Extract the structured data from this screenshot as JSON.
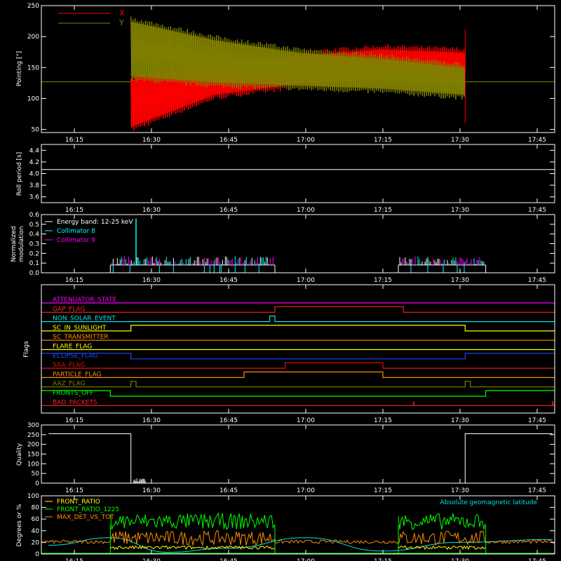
{
  "colors": {
    "background": "#000000",
    "axes": "#ffffff",
    "x_pointing": "#ff0000",
    "y_pointing": "#808000",
    "energy_label": "#ffffff",
    "collimator8": "#00ffff",
    "collimator9": "#ff00ff",
    "geomag": "#00e5e5",
    "front_ratio": "#ffff00",
    "front_ratio_1225": "#00ff00",
    "max_det": "#ff8c00"
  },
  "time_axis": {
    "start_min": 1000,
    "end_min": 1070,
    "ticks": [
      "16:15",
      "16:30",
      "16:45",
      "17:00",
      "17:15",
      "17:30",
      "17:45"
    ],
    "tick_minutes": [
      975,
      990,
      1005,
      1020,
      1035,
      1050,
      1065
    ]
  },
  "chart_data": [
    {
      "type": "line",
      "ylabel": "Pointing [\"]",
      "ylim": [
        45,
        250
      ],
      "yticks": [
        "50",
        "100",
        "150",
        "200",
        "250"
      ],
      "ytick_values": [
        50,
        100,
        150,
        200,
        250
      ],
      "legend": [
        {
          "name": "X",
          "color": "#ff0000"
        },
        {
          "name": "Y",
          "color": "#808000"
        }
      ],
      "series": [
        {
          "name": "X",
          "quiet_value": 127,
          "active_start": "16:26",
          "active_end": "17:31",
          "min_envelope": [
            48,
            100,
            118,
            125,
            130
          ],
          "max_envelope": [
            135,
            160,
            175,
            185,
            180
          ]
        },
        {
          "name": "Y",
          "quiet_value": 127,
          "active_start": "16:26",
          "active_end": "17:31",
          "min_envelope": [
            130,
            120,
            115,
            110,
            100
          ],
          "max_envelope": [
            230,
            200,
            180,
            170,
            155
          ]
        }
      ]
    },
    {
      "type": "line",
      "ylabel": "Roll period [s]",
      "ylim": [
        3.5,
        4.5
      ],
      "yticks": [
        "3.6",
        "3.8",
        "4.0",
        "4.2",
        "4.4"
      ],
      "ytick_values": [
        3.6,
        3.8,
        4.0,
        4.2,
        4.4
      ],
      "series": [
        {
          "name": "",
          "value": 4.07
        }
      ]
    },
    {
      "type": "bar",
      "ylabel": "Normalized modulation",
      "ylabel_lines": [
        "Normalized",
        "modulation"
      ],
      "ylim": [
        0,
        0.6
      ],
      "yticks": [
        "0.0",
        "0.1",
        "0.2",
        "0.3",
        "0.4",
        "0.5",
        "0.6"
      ],
      "ytick_values": [
        0,
        0.1,
        0.2,
        0.3,
        0.4,
        0.5,
        0.6
      ],
      "legend": [
        {
          "name": "Energy band: 12-25 keV",
          "color": "#ffffff"
        },
        {
          "name": "Collimator 8",
          "color": "#00ffff"
        },
        {
          "name": "Collimator 9",
          "color": "#ff00ff"
        }
      ],
      "segments": [
        {
          "start": "16:22",
          "end": "16:54",
          "baseline": 0.08,
          "typical_peak": 0.15
        },
        {
          "start": "17:18",
          "end": "17:35",
          "baseline": 0.08,
          "typical_peak": 0.15
        }
      ],
      "spike": {
        "time": "16:27",
        "value": 0.56
      }
    },
    {
      "type": "line",
      "ylabel": "Flags",
      "flags": [
        {
          "name": "ATTENUATOR_STATE",
          "color": "#ff00ff",
          "transitions": []
        },
        {
          "name": "GAP_FLAG",
          "color": "#ff2020",
          "transitions": [
            [
              "16:54",
              1
            ],
            [
              "17:19",
              0
            ]
          ]
        },
        {
          "name": "NON_SOLAR_EVENT",
          "color": "#00e5e5",
          "transitions": [
            [
              "16:53",
              1
            ],
            [
              "16:54",
              0
            ]
          ]
        },
        {
          "name": "SC_IN_SUNLIGHT",
          "color": "#ffff00",
          "transitions": [
            [
              "16:26",
              1
            ],
            [
              "17:31",
              0
            ]
          ]
        },
        {
          "name": "SC_TRANSMITTER",
          "color": "#ff8c00",
          "transitions": []
        },
        {
          "name": "FLARE_FLAG",
          "color": "#ffff00",
          "transitions": []
        },
        {
          "name": "ECLIPSE_FLAG",
          "color": "#1e4bff",
          "transitions": [
            [
              "16:26",
              0
            ],
            [
              "17:31",
              1
            ]
          ]
        },
        {
          "name": "SAA_FLAG",
          "color": "#e01010",
          "transitions": [
            [
              "16:56",
              1
            ],
            [
              "17:15",
              0
            ]
          ]
        },
        {
          "name": "PARTICLE_FLAG",
          "color": "#ff8c00",
          "transitions": [
            [
              "16:48",
              1
            ],
            [
              "17:15",
              0
            ]
          ]
        },
        {
          "name": "AAZ_FLAG",
          "color": "#808000",
          "transitions": [
            [
              "16:26",
              1
            ],
            [
              "16:27",
              0
            ],
            [
              "17:31",
              1
            ],
            [
              "17:32",
              0
            ]
          ]
        },
        {
          "name": "FRONTS_OFF",
          "color": "#00ff00",
          "transitions": [
            [
              "16:22",
              0
            ],
            [
              "17:35",
              1
            ]
          ]
        },
        {
          "name": "BAD_PACKETS",
          "color": "#ff2020",
          "transitions": []
        }
      ]
    },
    {
      "type": "line",
      "ylabel": "Quality",
      "ylim": [
        0,
        300
      ],
      "yticks": [
        "0",
        "50",
        "100",
        "150",
        "200",
        "250",
        "300"
      ],
      "ytick_values": [
        0,
        50,
        100,
        150,
        200,
        250,
        300
      ],
      "series": [
        {
          "name": "",
          "x": [
            "16:10",
            "16:26",
            "16:26",
            "17:31",
            "17:31",
            "17:48"
          ],
          "values": [
            255,
            255,
            0,
            0,
            255,
            255
          ]
        }
      ]
    },
    {
      "type": "line",
      "ylabel": "Degrees or %",
      "ylim": [
        0,
        100
      ],
      "yticks": [
        "0",
        "20",
        "40",
        "60",
        "80",
        "100"
      ],
      "ytick_values": [
        0,
        20,
        40,
        60,
        80,
        100
      ],
      "legend": [
        {
          "name": "FRONT_RATIO",
          "color": "#ffff00"
        },
        {
          "name": "FRONT_RATIO_1225",
          "color": "#00ff00"
        },
        {
          "name": "MAX_DET_VS_TOT",
          "color": "#ff8c00"
        }
      ],
      "annotation": "Absolute geomagnetic latitude",
      "series": [
        {
          "name": "FRONT_RATIO",
          "segments": [
            [
              "16:22",
              "16:54"
            ],
            [
              "17:18",
              "17:35"
            ]
          ],
          "level": 10
        },
        {
          "name": "FRONT_RATIO_1225",
          "segments": [
            [
              "16:22",
              "16:54"
            ],
            [
              "17:18",
              "17:35"
            ]
          ],
          "level": 55
        },
        {
          "name": "MAX_DET_VS_TOT",
          "level": 20
        },
        {
          "name": "Absolute geomagnetic latitude",
          "x": [
            "16:10",
            "16:22",
            "16:33",
            "16:45",
            "17:00",
            "17:15",
            "17:30",
            "17:48"
          ],
          "values": [
            15,
            28,
            3,
            10,
            28,
            5,
            20,
            25
          ]
        }
      ]
    }
  ]
}
